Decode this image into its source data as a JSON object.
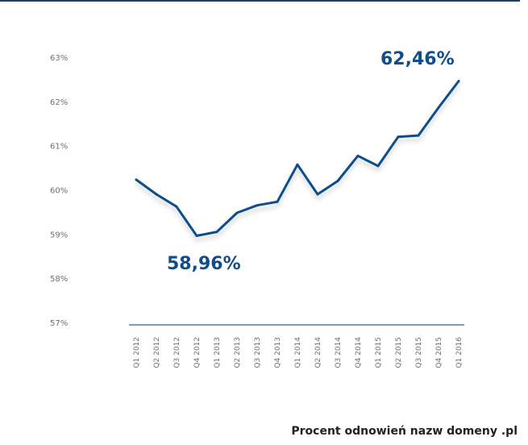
{
  "chart_data": {
    "type": "line",
    "title": "Procent odnowień nazw domeny .pl",
    "xlabel": "",
    "ylabel": "",
    "ylim": [
      57,
      63
    ],
    "yticks": [
      {
        "value": 57,
        "label": "57%"
      },
      {
        "value": 58,
        "label": "58%"
      },
      {
        "value": 59,
        "label": "59%"
      },
      {
        "value": 60,
        "label": "60%"
      },
      {
        "value": 61,
        "label": "61%"
      },
      {
        "value": 62,
        "label": "62%"
      },
      {
        "value": 63,
        "label": "63%"
      }
    ],
    "categories": [
      "Q1 2012",
      "Q2 2012",
      "Q3 2012",
      "Q4 2012",
      "Q1 2013",
      "Q2 2013",
      "Q3 2013",
      "Q4 2013",
      "Q1 2014",
      "Q2 2014",
      "Q3 2014",
      "Q4 2014",
      "Q1 2015",
      "Q2 2015",
      "Q3 2015",
      "Q4 2015",
      "Q1 2016"
    ],
    "series": [
      {
        "name": "Procent odnowień",
        "values": [
          60.23,
          59.9,
          59.62,
          58.96,
          59.05,
          59.48,
          59.65,
          59.73,
          60.57,
          59.9,
          60.2,
          60.77,
          60.54,
          61.2,
          61.23,
          61.86,
          62.46
        ]
      }
    ],
    "annotations": [
      {
        "label": "58,96%",
        "index": 3
      },
      {
        "label": "62,46%",
        "index": 16
      }
    ],
    "grid": false,
    "legend": "none",
    "colors": {
      "line": "#0f4e8a",
      "axis": "#2e5d93",
      "text": "#6f6f6f",
      "callout": "#0f4e8a"
    }
  }
}
